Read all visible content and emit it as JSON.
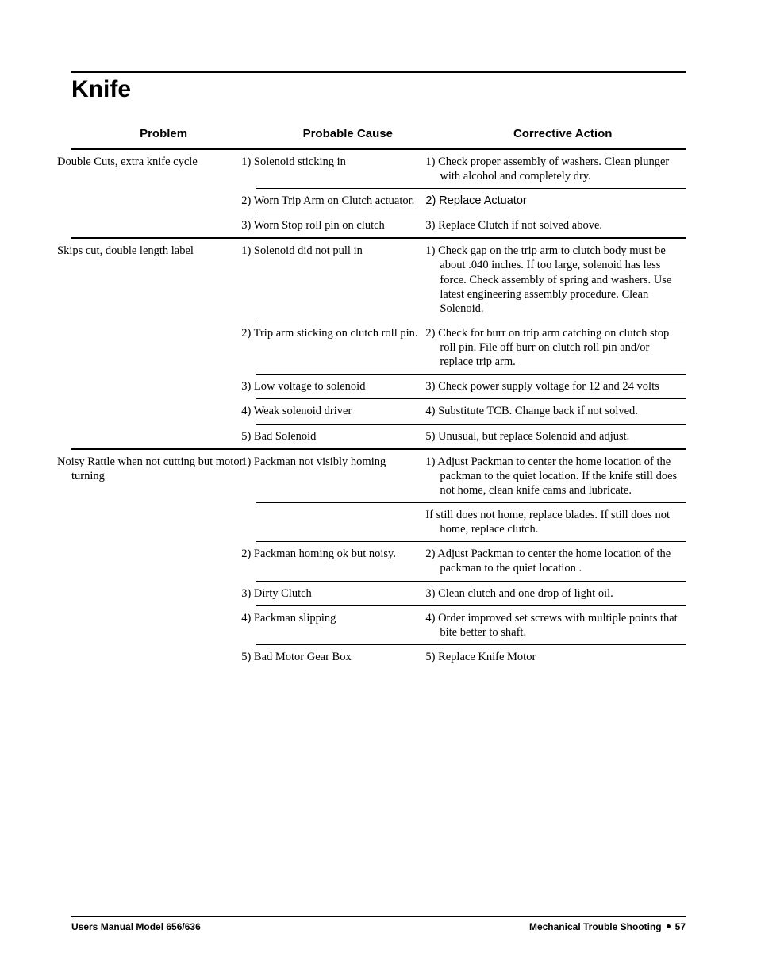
{
  "section_title": "Knife",
  "headers": {
    "c1": "Problem",
    "c2": "Probable Cause",
    "c3": "Corrective Action"
  },
  "groups": [
    {
      "problem": "Double Cuts, extra knife cycle",
      "rows": [
        {
          "cause": "1) Solenoid sticking in",
          "action": "1) Check proper assembly of washers.  Clean plunger with alcohol and completely dry."
        },
        {
          "cause": "2) Worn Trip Arm on Clutch actuator.",
          "action": "2) Replace Actuator",
          "action_sans": true
        },
        {
          "cause": "3) Worn Stop roll pin on clutch",
          "action": "3) Replace Clutch if not solved above."
        }
      ]
    },
    {
      "problem": "Skips cut, double length label",
      "rows": [
        {
          "cause": "1) Solenoid did not pull in",
          "action": "1) Check gap on the trip arm to clutch body must be about .040 inches. If too large, solenoid has less force.  Check assembly of spring and washers. Use latest engineering assembly procedure.  Clean Solenoid."
        },
        {
          "cause": "2) Trip arm sticking on clutch roll pin.",
          "action": "2) Check for burr on trip arm catching on clutch stop roll pin.  File off burr on clutch roll pin and/or replace trip arm."
        },
        {
          "cause": "3) Low voltage to solenoid",
          "action": "3) Check power supply voltage for 12 and 24 volts"
        },
        {
          "cause": "4) Weak solenoid driver",
          "action": "4) Substitute TCB.  Change back if not solved."
        },
        {
          "cause": "5) Bad Solenoid",
          "action": "5) Unusual, but replace Solenoid and adjust."
        }
      ]
    },
    {
      "problem": "Noisy Rattle when not cutting but motor turning",
      "rows": [
        {
          "cause": "1) Packman not visibly homing",
          "action": "1) Adjust Packman to center the home location of the packman to the quiet location.  If the knife still does not home, clean knife cams and lubricate."
        },
        {
          "cause": "",
          "action": "If still does not home, replace blades.  If still does not home, replace clutch."
        },
        {
          "cause": "2) Packman homing ok but noisy.",
          "action": "2) Adjust Packman to center the home location of the packman to the quiet location ."
        },
        {
          "cause": "3) Dirty Clutch",
          "action": "3) Clean clutch and one drop of light oil."
        },
        {
          "cause": "4) Packman slipping",
          "action": "4) Order improved set screws with multiple points that bite better to shaft."
        },
        {
          "cause": "5) Bad Motor Gear Box",
          "action": "5) Replace Knife Motor"
        }
      ]
    }
  ],
  "footer": {
    "left": "Users Manual Model 656/636",
    "right_section": "Mechanical Trouble Shooting",
    "page": "57"
  }
}
